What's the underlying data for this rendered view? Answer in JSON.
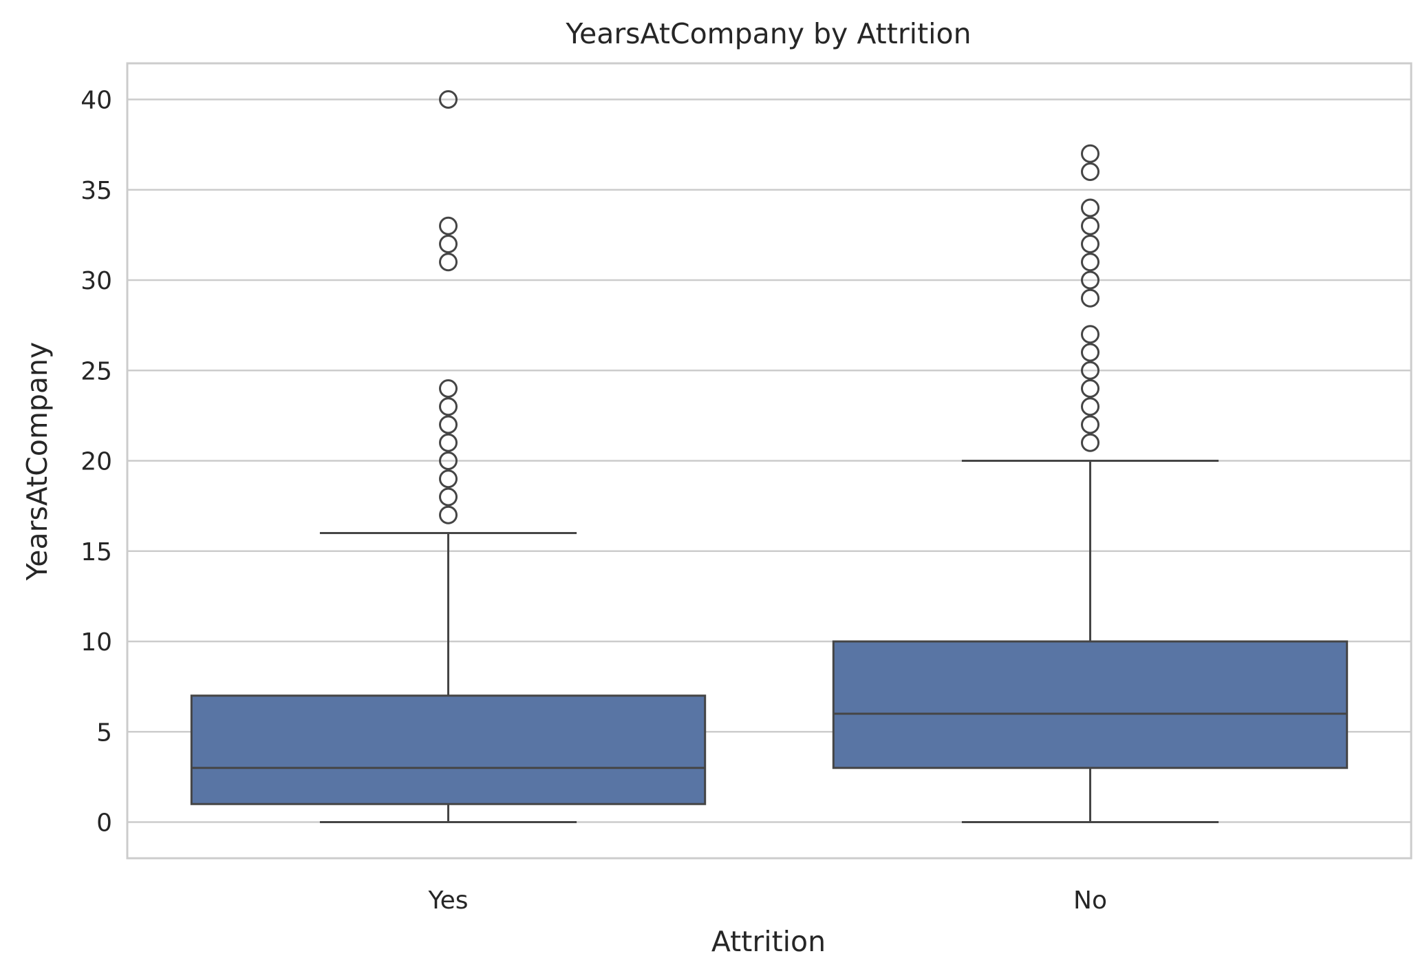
{
  "chart_data": {
    "type": "box",
    "title": "YearsAtCompany by Attrition",
    "xlabel": "Attrition",
    "ylabel": "YearsAtCompany",
    "ylim": [
      -2,
      42
    ],
    "yticks": [
      0,
      5,
      10,
      15,
      20,
      25,
      30,
      35,
      40
    ],
    "grid": true,
    "box_color": "#5975a4",
    "line_color": "#454545",
    "categories": [
      "Yes",
      "No"
    ],
    "boxes": [
      {
        "category": "Yes",
        "whisker_low": 0,
        "q1": 1,
        "median": 3,
        "q3": 7,
        "whisker_high": 16,
        "outliers": [
          17,
          18,
          19,
          20,
          21,
          22,
          23,
          24,
          31,
          32,
          33,
          40
        ]
      },
      {
        "category": "No",
        "whisker_low": 0,
        "q1": 3,
        "median": 6,
        "q3": 10,
        "whisker_high": 20,
        "outliers": [
          21,
          22,
          23,
          24,
          25,
          26,
          27,
          29,
          30,
          31,
          32,
          33,
          34,
          36,
          37
        ]
      }
    ]
  }
}
